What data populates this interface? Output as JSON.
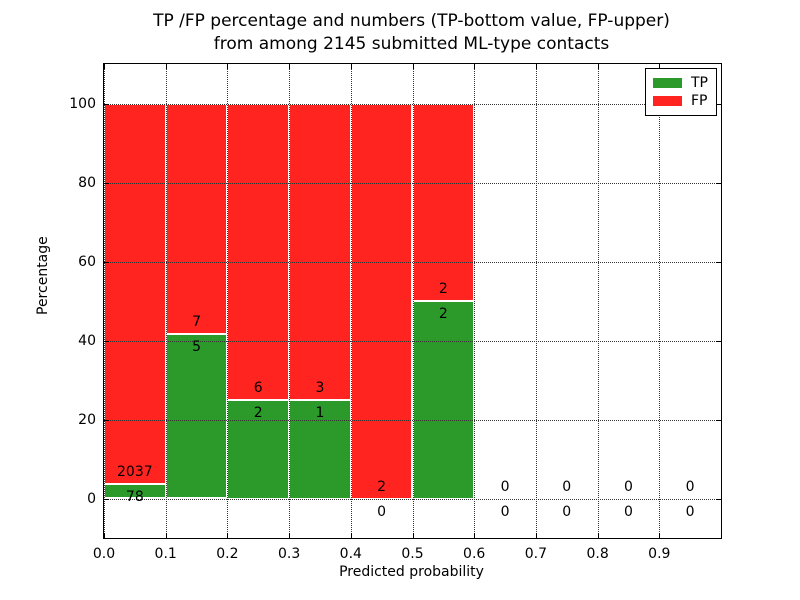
{
  "title": {
    "line1": "TP /FP percentage and numbers (TP-bottom value, FP-upper)",
    "line2": "from among 2145 submitted ML-type contacts"
  },
  "x_axis": {
    "label": "Predicted probability",
    "tick_labels": [
      "0.0",
      "0.1",
      "0.2",
      "0.3",
      "0.4",
      "0.5",
      "0.6",
      "0.7",
      "0.8",
      "0.9"
    ]
  },
  "y_axis": {
    "label": "Percentage",
    "tick_labels": [
      "0",
      "20",
      "40",
      "60",
      "80",
      "100"
    ]
  },
  "legend": {
    "items": [
      {
        "label": "TP",
        "color": "#2b9a2b"
      },
      {
        "label": "FP",
        "color": "#ff2420"
      }
    ]
  },
  "chart_data": {
    "type": "bar",
    "stacked": true,
    "normalized_to_percent": true,
    "title": "TP /FP percentage and numbers (TP-bottom value, FP-upper) from among 2145 submitted ML-type contacts",
    "xlabel": "Predicted probability",
    "ylabel": "Percentage",
    "xlim": [
      0.0,
      1.0
    ],
    "ylim": [
      -10,
      110
    ],
    "x_ticks": [
      0.0,
      0.1,
      0.2,
      0.3,
      0.4,
      0.5,
      0.6,
      0.7,
      0.8,
      0.9
    ],
    "y_ticks": [
      0,
      20,
      40,
      60,
      80,
      100
    ],
    "grid": "dotted",
    "legend_position": "upper right",
    "bin_width": 0.1,
    "total_contacts": 2145,
    "series": [
      {
        "name": "TP",
        "color": "#2b9a2b",
        "position": "bottom"
      },
      {
        "name": "FP",
        "color": "#ff2420",
        "position": "top"
      }
    ],
    "bins": [
      {
        "x0": 0.0,
        "x1": 0.1,
        "tp": 78,
        "fp": 2037
      },
      {
        "x0": 0.1,
        "x1": 0.2,
        "tp": 5,
        "fp": 7
      },
      {
        "x0": 0.2,
        "x1": 0.3,
        "tp": 2,
        "fp": 6
      },
      {
        "x0": 0.3,
        "x1": 0.4,
        "tp": 1,
        "fp": 3
      },
      {
        "x0": 0.4,
        "x1": 0.5,
        "tp": 0,
        "fp": 2
      },
      {
        "x0": 0.5,
        "x1": 0.6,
        "tp": 2,
        "fp": 2
      },
      {
        "x0": 0.6,
        "x1": 0.7,
        "tp": 0,
        "fp": 0
      },
      {
        "x0": 0.7,
        "x1": 0.8,
        "tp": 0,
        "fp": 0
      },
      {
        "x0": 0.8,
        "x1": 0.9,
        "tp": 0,
        "fp": 0
      },
      {
        "x0": 0.9,
        "x1": 1.0,
        "tp": 0,
        "fp": 0
      }
    ]
  }
}
